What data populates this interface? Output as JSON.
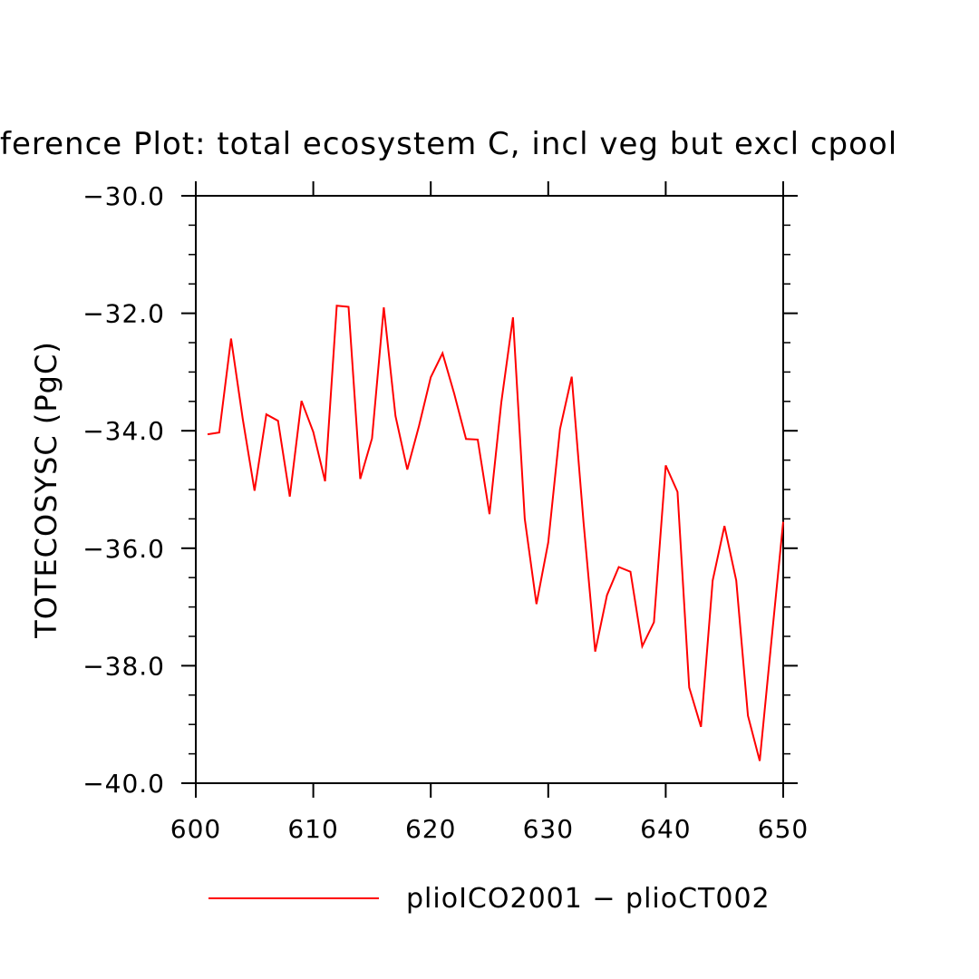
{
  "chart_data": {
    "type": "line",
    "title": "ference Plot: total ecosystem C, incl veg but excl cpool",
    "xlabel": "",
    "ylabel": "TOTECOSYSC  (PgC)",
    "xlim": [
      600,
      650
    ],
    "ylim": [
      -40.0,
      -30.0
    ],
    "xticks": [
      600,
      610,
      620,
      630,
      640,
      650
    ],
    "xtick_labels": [
      "600",
      "610",
      "620",
      "630",
      "640",
      "650"
    ],
    "yticks": [
      -30.0,
      -32.0,
      -34.0,
      -36.0,
      -38.0,
      -40.0
    ],
    "ytick_labels": [
      "−30.0",
      "−32.0",
      "−34.0",
      "−36.0",
      "−38.0",
      "−40.0"
    ],
    "grid": false,
    "legend_position": "bottom",
    "series": [
      {
        "name": "plioICO2001 − plioCT002",
        "color": "#ff0000",
        "x": [
          601,
          602,
          603,
          604,
          605,
          606,
          607,
          608,
          609,
          610,
          611,
          612,
          613,
          614,
          615,
          616,
          617,
          618,
          619,
          620,
          621,
          622,
          623,
          624,
          625,
          626,
          627,
          628,
          629,
          630,
          631,
          632,
          633,
          634,
          635,
          636,
          637,
          638,
          639,
          640,
          641,
          642,
          643,
          644,
          645,
          646,
          647,
          648,
          649,
          650
        ],
        "values": [
          -34.06,
          -34.03,
          -32.43,
          -33.8,
          -35.02,
          -33.72,
          -33.83,
          -35.12,
          -33.49,
          -34.02,
          -34.86,
          -31.87,
          -31.89,
          -34.82,
          -34.13,
          -31.9,
          -33.75,
          -34.66,
          -33.92,
          -33.09,
          -32.68,
          -33.37,
          -34.14,
          -34.15,
          -35.42,
          -33.52,
          -32.07,
          -35.5,
          -36.95,
          -35.9,
          -33.97,
          -33.08,
          -35.55,
          -37.76,
          -36.8,
          -36.32,
          -36.4,
          -37.67,
          -37.26,
          -34.59,
          -35.04,
          -38.37,
          -39.04,
          -36.55,
          -35.62,
          -36.55,
          -38.85,
          -39.62,
          -37.58,
          -35.55
        ]
      }
    ]
  }
}
